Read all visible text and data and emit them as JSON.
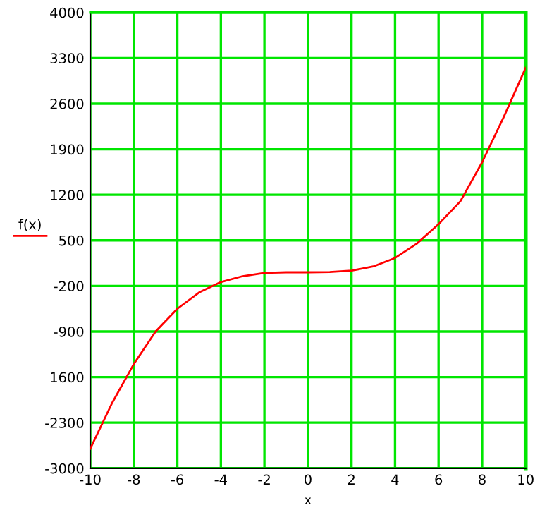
{
  "chart_data": {
    "type": "line",
    "xlabel": "x",
    "ylabel": "f(x)",
    "x": [
      -10,
      -9,
      -8,
      -7,
      -6,
      -5,
      -4,
      -3,
      -2,
      -1,
      0,
      1,
      2,
      3,
      4,
      5,
      6,
      7,
      8,
      9,
      10
    ],
    "series": [
      {
        "color": "#ff0000",
        "values": [
          -2700,
          -2000,
          -1400,
          -900,
          -550,
          -300,
          -140,
          -50,
          0,
          10,
          10,
          15,
          35,
          100,
          230,
          450,
          750,
          1100,
          1700,
          2400,
          3150
        ]
      }
    ],
    "xlim": [
      -10,
      10
    ],
    "xticks": [
      -10,
      -8,
      -6,
      -4,
      -2,
      0,
      2,
      4,
      6,
      8,
      10
    ],
    "ylim": [
      -3000,
      4000
    ],
    "yticks": [
      -3000,
      -2300,
      {
        "value": -1600,
        "label": "1600"
      },
      -900,
      -200,
      500,
      1200,
      1900,
      2600,
      3300,
      4000
    ],
    "grid": true,
    "marker": "none",
    "line_style": "solid"
  }
}
